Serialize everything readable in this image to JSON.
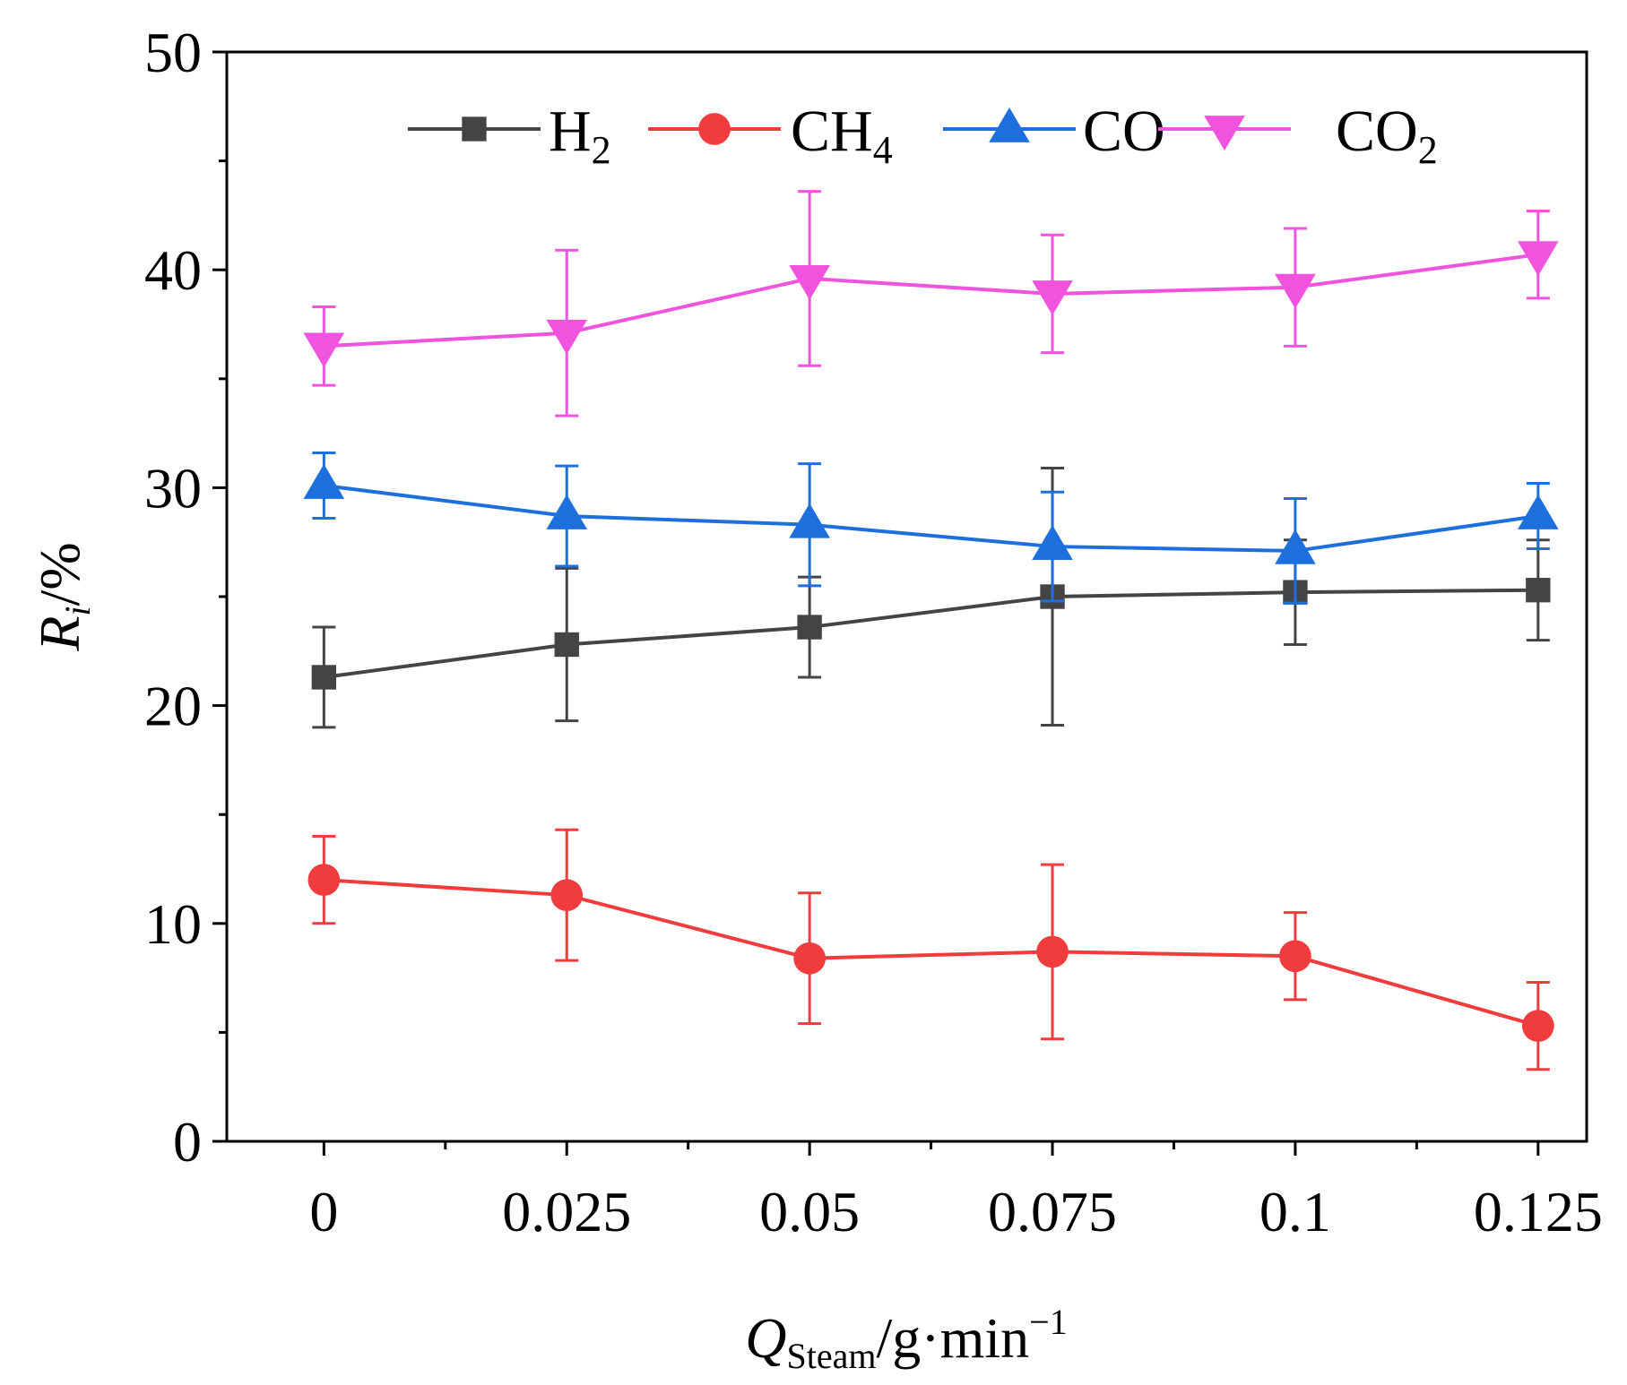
{
  "chart_data": {
    "type": "line",
    "title": "",
    "x": [
      0,
      0.025,
      0.05,
      0.075,
      0.1,
      0.125
    ],
    "x_tick_labels": [
      "0",
      "0.025",
      "0.05",
      "0.075",
      "0.1",
      "0.125"
    ],
    "y_tick_labels": [
      "0",
      "10",
      "20",
      "30",
      "40",
      "50"
    ],
    "xlim": [
      -0.01,
      0.13
    ],
    "ylim": [
      0,
      50
    ],
    "xlabel": {
      "main": "Q",
      "sub": "Steam",
      "rest": "/g·min",
      "sup": "−1"
    },
    "ylabel": {
      "main": "R",
      "sub": "i",
      "rest": "/%"
    },
    "series": [
      {
        "name": "H2",
        "label_main": "H",
        "label_sub": "2",
        "color": "#444444",
        "marker": "square",
        "values": [
          21.3,
          22.8,
          23.6,
          25.0,
          25.2,
          25.3
        ],
        "errors": [
          2.3,
          3.5,
          2.3,
          5.9,
          2.4,
          2.3
        ]
      },
      {
        "name": "CH4",
        "label_main": "CH",
        "label_sub": "4",
        "color": "#f03c3c",
        "marker": "circle",
        "values": [
          12.0,
          11.3,
          8.4,
          8.7,
          8.5,
          5.3
        ],
        "errors": [
          2.0,
          3.0,
          3.0,
          4.0,
          2.0,
          2.0
        ]
      },
      {
        "name": "CO",
        "label_main": "CO",
        "label_sub": "",
        "color": "#1e6fde",
        "marker": "triangle-up",
        "values": [
          30.1,
          28.7,
          28.3,
          27.3,
          27.1,
          28.7
        ],
        "errors": [
          1.5,
          2.3,
          2.8,
          2.5,
          2.4,
          1.5
        ]
      },
      {
        "name": "CO2",
        "label_main": "CO",
        "label_sub": "2",
        "color": "#f053de",
        "marker": "triangle-down",
        "values": [
          36.5,
          37.1,
          39.6,
          38.9,
          39.2,
          40.7
        ],
        "errors": [
          1.8,
          3.8,
          4.0,
          2.7,
          2.7,
          2.0
        ]
      }
    ],
    "legend_position": "top-center",
    "grid": false
  }
}
